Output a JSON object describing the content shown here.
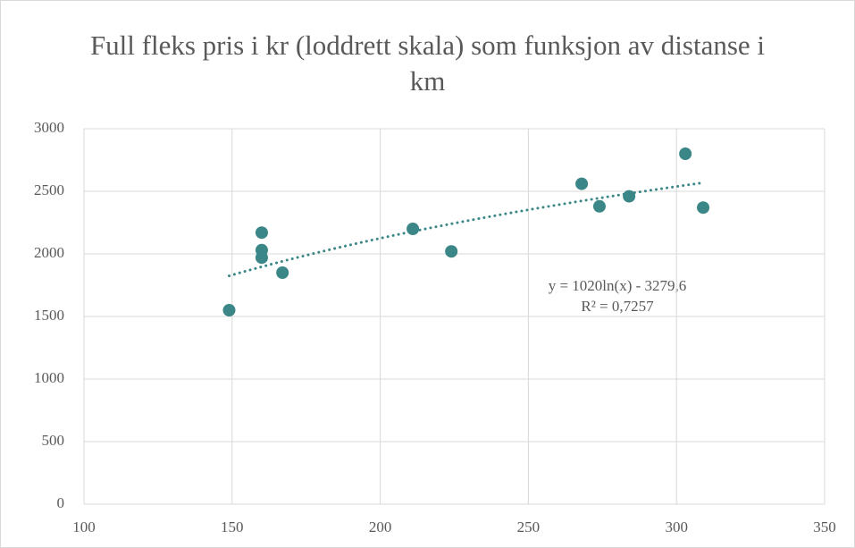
{
  "chart_data": {
    "type": "scatter",
    "title": "Full fleks pris i kr (loddrett skala) som funksjon av distanse i km",
    "x": [
      149,
      160,
      160,
      160,
      167,
      211,
      224,
      268,
      274,
      284,
      303,
      309
    ],
    "values": [
      1550,
      2170,
      2030,
      1970,
      1850,
      2200,
      2020,
      2560,
      2380,
      2460,
      2800,
      2370
    ],
    "color": "#3b8686",
    "xlim": [
      100,
      350
    ],
    "xticks": [
      100,
      150,
      200,
      250,
      300,
      350
    ],
    "ylim": [
      0,
      3000
    ],
    "yticks": [
      0,
      500,
      1000,
      1500,
      2000,
      2500,
      3000
    ],
    "grid": true,
    "trendline": {
      "type": "log",
      "coefficients": [
        1020,
        -3279.6
      ],
      "equation": "y = 1020ln(x) - 3279,6",
      "r_squared": "R² = 0,7257",
      "color": "#3b8686"
    }
  }
}
